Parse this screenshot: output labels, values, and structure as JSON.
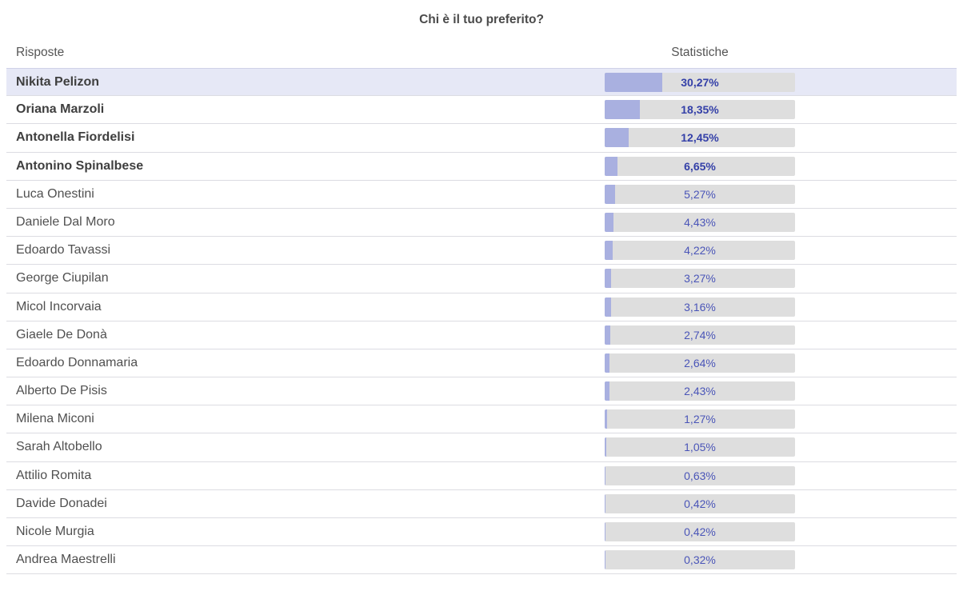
{
  "poll": {
    "title": "Chi è il tuo preferito?",
    "columns": {
      "answers": "Risposte",
      "stats": "Statistiche"
    },
    "colors": {
      "bar_fill": "#a9b0e0",
      "bar_track": "#dedede",
      "highlight_row": "#e6e8f6",
      "percent_text": "#4a55b8"
    },
    "rows": [
      {
        "name": "Nikita Pelizon",
        "percent_label": "30,27%",
        "value": 30.27,
        "bold": true,
        "highlighted": true
      },
      {
        "name": "Oriana Marzoli",
        "percent_label": "18,35%",
        "value": 18.35,
        "bold": true,
        "highlighted": false
      },
      {
        "name": "Antonella Fiordelisi",
        "percent_label": "12,45%",
        "value": 12.45,
        "bold": true,
        "highlighted": false
      },
      {
        "name": "Antonino Spinalbese",
        "percent_label": "6,65%",
        "value": 6.65,
        "bold": true,
        "highlighted": false
      },
      {
        "name": "Luca Onestini",
        "percent_label": "5,27%",
        "value": 5.27,
        "bold": false,
        "highlighted": false
      },
      {
        "name": "Daniele Dal Moro",
        "percent_label": "4,43%",
        "value": 4.43,
        "bold": false,
        "highlighted": false
      },
      {
        "name": "Edoardo Tavassi",
        "percent_label": "4,22%",
        "value": 4.22,
        "bold": false,
        "highlighted": false
      },
      {
        "name": "George Ciupilan",
        "percent_label": "3,27%",
        "value": 3.27,
        "bold": false,
        "highlighted": false
      },
      {
        "name": "Micol Incorvaia",
        "percent_label": "3,16%",
        "value": 3.16,
        "bold": false,
        "highlighted": false
      },
      {
        "name": "Giaele De Donà",
        "percent_label": "2,74%",
        "value": 2.74,
        "bold": false,
        "highlighted": false
      },
      {
        "name": "Edoardo Donnamaria",
        "percent_label": "2,64%",
        "value": 2.64,
        "bold": false,
        "highlighted": false
      },
      {
        "name": "Alberto De Pisis",
        "percent_label": "2,43%",
        "value": 2.43,
        "bold": false,
        "highlighted": false
      },
      {
        "name": "Milena Miconi",
        "percent_label": "1,27%",
        "value": 1.27,
        "bold": false,
        "highlighted": false
      },
      {
        "name": "Sarah Altobello",
        "percent_label": "1,05%",
        "value": 1.05,
        "bold": false,
        "highlighted": false
      },
      {
        "name": "Attilio Romita",
        "percent_label": "0,63%",
        "value": 0.63,
        "bold": false,
        "highlighted": false
      },
      {
        "name": "Davide Donadei",
        "percent_label": "0,42%",
        "value": 0.42,
        "bold": false,
        "highlighted": false
      },
      {
        "name": "Nicole Murgia",
        "percent_label": "0,42%",
        "value": 0.42,
        "bold": false,
        "highlighted": false
      },
      {
        "name": "Andrea Maestrelli",
        "percent_label": "0,32%",
        "value": 0.32,
        "bold": false,
        "highlighted": false
      }
    ]
  }
}
